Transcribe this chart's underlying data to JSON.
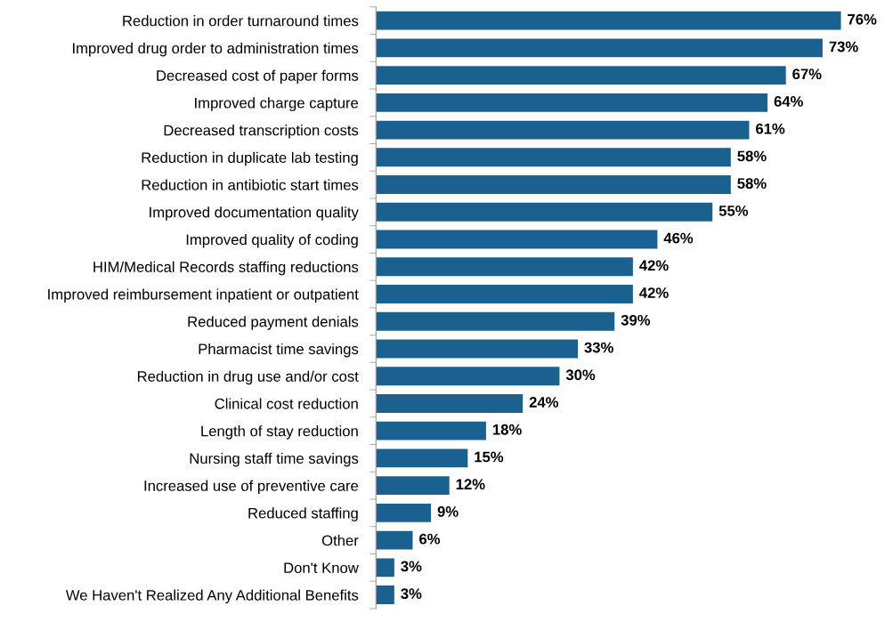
{
  "chart_data": {
    "type": "bar",
    "orientation": "horizontal",
    "color": "#1b6190",
    "categories": [
      "Reduction in order turnaround times",
      "Improved drug order to administration times",
      "Decreased cost of paper forms",
      "Improved charge capture",
      "Decreased transcription costs",
      "Reduction in duplicate lab testing",
      "Reduction in antibiotic start times",
      "Improved documentation quality",
      "Improved quality of coding",
      "HIM/Medical Records staffing reductions",
      "Improved reimbursement inpatient or outpatient",
      "Reduced payment denials",
      "Pharmacist time savings",
      "Reduction in drug use and/or cost",
      "Clinical cost reduction",
      "Length of stay reduction",
      "Nursing staff time savings",
      "Increased use of preventive care",
      "Reduced staffing",
      "Other",
      "Don't Know",
      "We Haven't Realized Any Additional Benefits"
    ],
    "values": [
      76,
      73,
      67,
      64,
      61,
      58,
      58,
      55,
      46,
      42,
      42,
      39,
      33,
      30,
      24,
      18,
      15,
      12,
      9,
      6,
      3,
      3
    ],
    "value_labels": [
      "76%",
      "73%",
      "67%",
      "64%",
      "61%",
      "58%",
      "58%",
      "55%",
      "46%",
      "42%",
      "42%",
      "39%",
      "33%",
      "30%",
      "24%",
      "18%",
      "15%",
      "12%",
      "9%",
      "6%",
      "3%",
      "3%"
    ],
    "grid": false,
    "legend": false
  }
}
